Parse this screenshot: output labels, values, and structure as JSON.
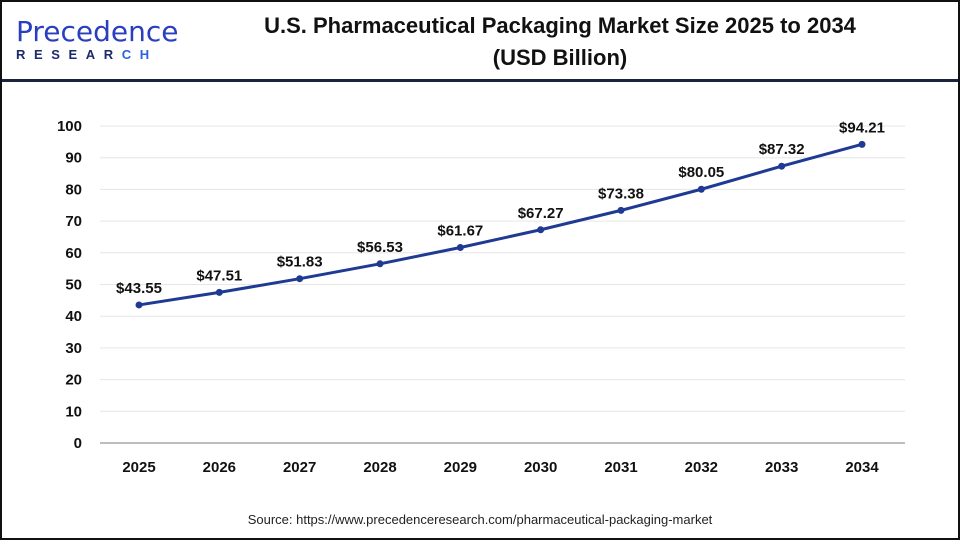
{
  "logo": {
    "brand_top": "Precedence",
    "brand_bottom": "RESEARCH"
  },
  "title_line1": "U.S. Pharmaceutical Packaging Market Size 2025 to 2034",
  "title_line2": "(USD Billion)",
  "source": "Source: https://www.precedenceresearch.com/pharmaceutical-packaging-market",
  "colors": {
    "line": "#1f3a93",
    "marker": "#1f3a93",
    "grid": "#e6e6e6",
    "axis": "#bdbdbd"
  },
  "chart_data": {
    "type": "line",
    "title": "U.S. Pharmaceutical Packaging Market Size 2025 to 2034 (USD Billion)",
    "categories": [
      "2025",
      "2026",
      "2027",
      "2028",
      "2029",
      "2030",
      "2031",
      "2032",
      "2033",
      "2034"
    ],
    "values": [
      43.55,
      47.51,
      51.83,
      56.53,
      61.67,
      67.27,
      73.38,
      80.05,
      87.32,
      94.21
    ],
    "data_labels": [
      "$43.55",
      "$47.51",
      "$51.83",
      "$56.53",
      "$61.67",
      "$67.27",
      "$73.38",
      "$80.05",
      "$87.32",
      "$94.21"
    ],
    "yticks": [
      0,
      10,
      20,
      30,
      40,
      50,
      60,
      70,
      80,
      90,
      100
    ],
    "ylim": [
      0,
      100
    ],
    "grid": true,
    "markers": true,
    "legend": "none"
  }
}
